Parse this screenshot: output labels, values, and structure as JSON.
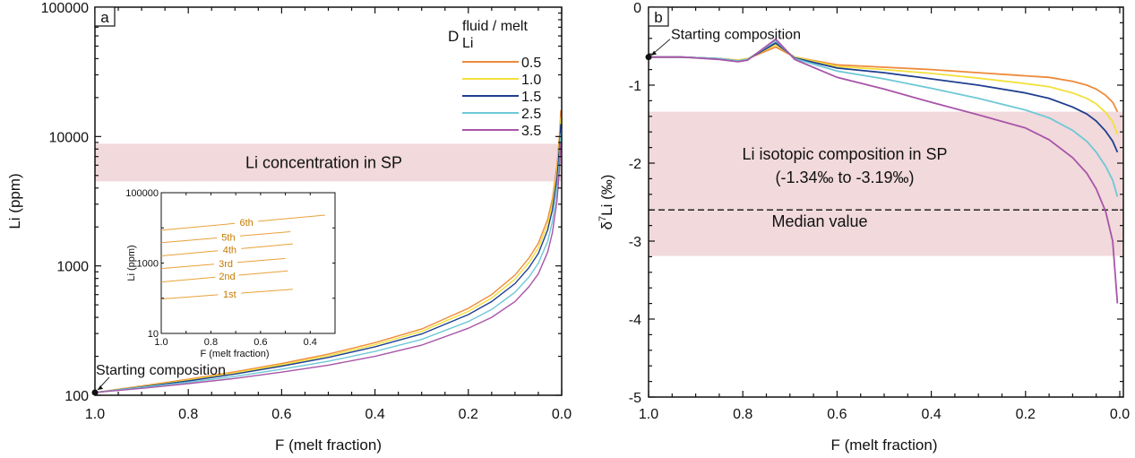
{
  "chart_data": [
    {
      "panel": "a",
      "type": "line",
      "title": "",
      "xlabel": "F (melt fraction)",
      "ylabel": "Li (ppm)",
      "yscale": "log",
      "xlim": [
        1.0,
        0.0
      ],
      "ylim": [
        100,
        100000
      ],
      "xticks": [
        "1.0",
        "0.8",
        "0.6",
        "0.4",
        "0.2",
        "0.0"
      ],
      "yticks": [
        "100",
        "1000",
        "10000",
        "100000"
      ],
      "legend_title_main": "D",
      "legend_title_sub": "Li",
      "legend_title_sup": "fluid / melt",
      "legend_position": "top-right",
      "band": {
        "label": "Li concentration in SP",
        "y_range": [
          4500,
          8800
        ],
        "color": "#f1d9dc"
      },
      "annotation": "Starting composition",
      "start_point": {
        "x": 1.0,
        "y": 105
      },
      "x": [
        1.0,
        0.9,
        0.8,
        0.7,
        0.6,
        0.5,
        0.4,
        0.3,
        0.2,
        0.15,
        0.1,
        0.07,
        0.05,
        0.03,
        0.02,
        0.01,
        0.005,
        0.002
      ],
      "series": [
        {
          "name": "0.5",
          "color": "#ee8a3a",
          "values": [
            105,
            118,
            133,
            152,
            176,
            208,
            255,
            325,
            470,
            600,
            850,
            1150,
            1500,
            2300,
            3300,
            6000,
            10000,
            16000
          ]
        },
        {
          "name": "1.0",
          "color": "#f2e03c",
          "values": [
            105,
            117,
            131,
            149,
            172,
            202,
            246,
            312,
            445,
            565,
            790,
            1060,
            1380,
            2100,
            3000,
            5400,
            9000,
            14000
          ]
        },
        {
          "name": "1.5",
          "color": "#1f3f8f",
          "values": [
            105,
            116,
            129,
            146,
            168,
            196,
            237,
            298,
            420,
            530,
            730,
            970,
            1250,
            1900,
            2700,
            4800,
            8000,
            12500
          ]
        },
        {
          "name": "2.5",
          "color": "#6ec8d6",
          "values": [
            105,
            115,
            126,
            140,
            159,
            183,
            218,
            270,
            372,
            460,
            625,
            820,
            1050,
            1550,
            2200,
            3900,
            6500,
            10500
          ]
        },
        {
          "name": "3.5",
          "color": "#a855a8",
          "values": [
            105,
            113,
            123,
            135,
            151,
            171,
            200,
            244,
            330,
            400,
            530,
            690,
            870,
            1280,
            1800,
            3200,
            5500,
            9000
          ]
        }
      ],
      "inset": {
        "xlabel": "F (melt fraction)",
        "ylabel": "Li (ppm)",
        "yscale": "log",
        "xlim": [
          1.0,
          0.3
        ],
        "ylim": [
          10,
          100000
        ],
        "xticks": [
          "1.0",
          "0.8",
          "0.6",
          "0.4"
        ],
        "yticks": [
          "10",
          "1000",
          "100000"
        ],
        "color": "#e8a23a",
        "lines": [
          {
            "label": "1st",
            "x": [
              1.0,
              0.47
            ],
            "y": [
              95,
              180
            ]
          },
          {
            "label": "2nd",
            "x": [
              1.0,
              0.49
            ],
            "y": [
              290,
              600
            ]
          },
          {
            "label": "3rd",
            "x": [
              1.0,
              0.5
            ],
            "y": [
              700,
              1350
            ]
          },
          {
            "label": "4th",
            "x": [
              1.0,
              0.47
            ],
            "y": [
              1600,
              3500
            ]
          },
          {
            "label": "5th",
            "x": [
              1.0,
              0.48
            ],
            "y": [
              3800,
              7800
            ]
          },
          {
            "label": "6th",
            "x": [
              1.0,
              0.34
            ],
            "y": [
              8600,
              23000
            ]
          }
        ]
      }
    },
    {
      "panel": "b",
      "type": "line",
      "title": "",
      "xlabel": "F (melt fraction)",
      "ylabel": "δ7Li (‰)",
      "ylabel_delta": "δ",
      "ylabel_sup": "7",
      "ylabel_rest": "Li (‰)",
      "xlim": [
        1.0,
        0.0
      ],
      "ylim": [
        -5,
        0
      ],
      "xticks": [
        "1.0",
        "0.8",
        "0.6",
        "0.4",
        "0.2",
        "0.0"
      ],
      "yticks": [
        "0",
        "-1",
        "-2",
        "-3",
        "-4",
        "-5"
      ],
      "band": {
        "label_line1": "Li isotopic composition in SP",
        "label_line2": "(-1.34‰ to -3.19‰)",
        "y_range": [
          -1.34,
          -3.19
        ],
        "color": "#f1d9dc"
      },
      "median": {
        "label": "Median value",
        "y": -2.6
      },
      "annotation": "Starting composition",
      "start_point": {
        "x": 1.0,
        "y": -0.64
      },
      "x": [
        1.0,
        0.93,
        0.85,
        0.81,
        0.79,
        0.73,
        0.69,
        0.6,
        0.5,
        0.4,
        0.3,
        0.2,
        0.15,
        0.1,
        0.07,
        0.05,
        0.03,
        0.015,
        0.005
      ],
      "series": [
        {
          "name": "0.5",
          "color": "#ee8a3a",
          "values": [
            -0.64,
            -0.64,
            -0.66,
            -0.68,
            -0.66,
            -0.51,
            -0.64,
            -0.74,
            -0.77,
            -0.8,
            -0.84,
            -0.88,
            -0.9,
            -0.95,
            -1.0,
            -1.05,
            -1.13,
            -1.22,
            -1.34
          ]
        },
        {
          "name": "1.0",
          "color": "#f2e03c",
          "values": [
            -0.64,
            -0.64,
            -0.66,
            -0.68,
            -0.66,
            -0.48,
            -0.64,
            -0.76,
            -0.8,
            -0.85,
            -0.91,
            -0.98,
            -1.02,
            -1.1,
            -1.17,
            -1.24,
            -1.35,
            -1.47,
            -1.63
          ]
        },
        {
          "name": "1.5",
          "color": "#1f3f8f",
          "values": [
            -0.64,
            -0.64,
            -0.66,
            -0.69,
            -0.67,
            -0.46,
            -0.65,
            -0.78,
            -0.84,
            -0.92,
            -1.0,
            -1.1,
            -1.17,
            -1.28,
            -1.37,
            -1.46,
            -1.59,
            -1.72,
            -1.86
          ]
        },
        {
          "name": "2.5",
          "color": "#6ec8d6",
          "values": [
            -0.64,
            -0.64,
            -0.66,
            -0.69,
            -0.67,
            -0.43,
            -0.66,
            -0.82,
            -0.92,
            -1.04,
            -1.17,
            -1.32,
            -1.42,
            -1.58,
            -1.72,
            -1.86,
            -2.04,
            -2.22,
            -2.43
          ]
        },
        {
          "name": "3.5",
          "color": "#a855a8",
          "values": [
            -0.64,
            -0.64,
            -0.67,
            -0.7,
            -0.68,
            -0.41,
            -0.67,
            -0.9,
            -1.05,
            -1.22,
            -1.38,
            -1.55,
            -1.7,
            -1.93,
            -2.13,
            -2.33,
            -2.62,
            -3.0,
            -3.8
          ]
        }
      ]
    }
  ]
}
